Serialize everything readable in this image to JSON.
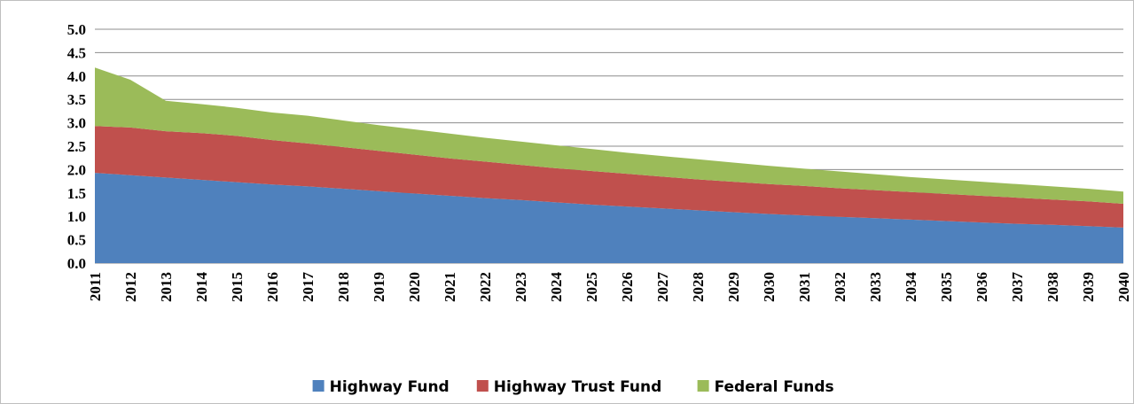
{
  "chart_data": {
    "type": "stacked_area",
    "categories": [
      "2011",
      "2012",
      "2013",
      "2014",
      "2015",
      "2016",
      "2017",
      "2018",
      "2019",
      "2020",
      "2021",
      "2022",
      "2023",
      "2024",
      "2025",
      "2026",
      "2027",
      "2028",
      "2029",
      "2030",
      "2031",
      "2032",
      "2033",
      "2034",
      "2035",
      "2036",
      "2037",
      "2038",
      "2039",
      "2040"
    ],
    "series": [
      {
        "name": "Highway Fund",
        "color": "#4f81bd",
        "values": [
          1.93,
          1.88,
          1.83,
          1.78,
          1.73,
          1.68,
          1.64,
          1.59,
          1.54,
          1.49,
          1.44,
          1.39,
          1.35,
          1.3,
          1.25,
          1.21,
          1.17,
          1.13,
          1.09,
          1.05,
          1.02,
          0.99,
          0.96,
          0.93,
          0.9,
          0.87,
          0.84,
          0.82,
          0.79,
          0.76
        ]
      },
      {
        "name": "Highway Trust Fund",
        "color": "#c0504d",
        "values": [
          1.0,
          1.02,
          0.99,
          1.0,
          0.99,
          0.95,
          0.92,
          0.89,
          0.86,
          0.83,
          0.8,
          0.78,
          0.75,
          0.73,
          0.72,
          0.7,
          0.68,
          0.66,
          0.65,
          0.64,
          0.63,
          0.61,
          0.6,
          0.59,
          0.58,
          0.57,
          0.56,
          0.54,
          0.53,
          0.51
        ]
      },
      {
        "name": "Federal Funds",
        "color": "#9bbb59",
        "values": [
          1.25,
          1.02,
          0.65,
          0.62,
          0.6,
          0.59,
          0.59,
          0.57,
          0.55,
          0.54,
          0.53,
          0.51,
          0.5,
          0.49,
          0.47,
          0.45,
          0.44,
          0.43,
          0.41,
          0.39,
          0.37,
          0.36,
          0.34,
          0.32,
          0.31,
          0.3,
          0.29,
          0.28,
          0.27,
          0.26
        ]
      }
    ],
    "ylim": [
      0,
      5
    ],
    "yticks": [
      {
        "value": 0,
        "label": "0.0"
      },
      0.5,
      {
        "value": 1,
        "label": "1.0"
      },
      1.5,
      {
        "value": 2,
        "label": "2.0"
      },
      2.5,
      {
        "value": 3,
        "label": "3.0"
      },
      3.5,
      {
        "value": 4,
        "label": "4.0"
      },
      4.5,
      {
        "value": 5,
        "label": "5.0"
      }
    ],
    "grid": true,
    "legend": "bottom"
  }
}
